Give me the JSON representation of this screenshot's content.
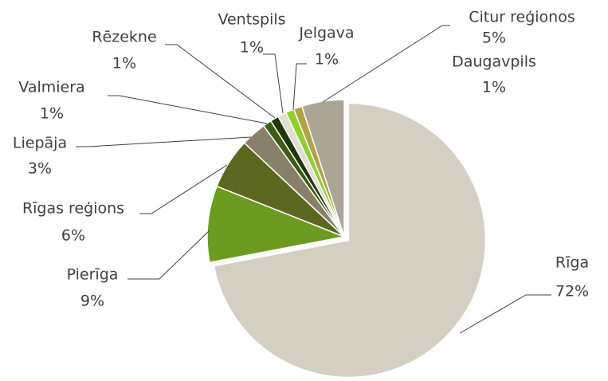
{
  "chart_data": {
    "type": "pie",
    "categories": [
      "Rīga",
      "Pierīga",
      "Rīgas reģions",
      "Liepāja",
      "Valmiera",
      "Rēzekne",
      "Ventspils",
      "Jelgava",
      "Daugavpils",
      "Citur reģionos"
    ],
    "values": [
      72,
      9,
      6,
      3,
      1,
      1,
      1,
      1,
      1,
      5
    ],
    "value_labels": [
      "72%",
      "9%",
      "6%",
      "3%",
      "1%",
      "1%",
      "1%",
      "1%",
      "1%",
      "5%"
    ],
    "colors": [
      "#d3cfc2",
      "#6b9b1f",
      "#5c6820",
      "#8a806a",
      "#3b5c12",
      "#22370b",
      "#e2ded4",
      "#8fd12c",
      "#b2a046",
      "#aca495"
    ]
  }
}
